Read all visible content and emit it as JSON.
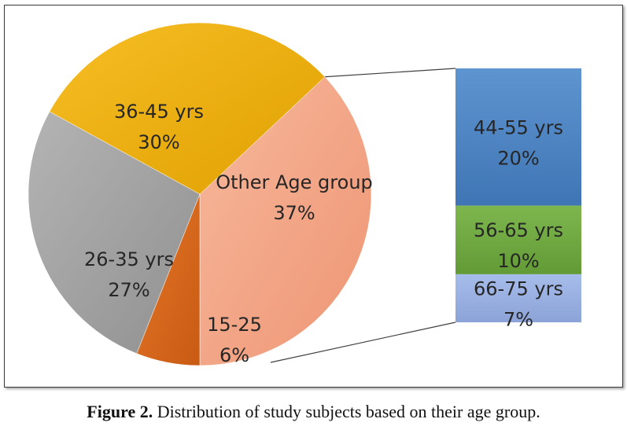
{
  "chart_data": {
    "type": "bar-of-pie",
    "pie": [
      {
        "label": "Other Age group",
        "value": 37,
        "value_label": "37%",
        "color": "#F4A686"
      },
      {
        "label": "15-25",
        "value": 6,
        "value_label": "6%",
        "color": "#D96A1E"
      },
      {
        "label": "26-35 yrs",
        "value": 27,
        "value_label": "27%",
        "color": "#A6A6A6"
      },
      {
        "label": "36-45 yrs",
        "value": 30,
        "value_label": "30%",
        "color": "#F0B000"
      }
    ],
    "bar": [
      {
        "label": "44-55 yrs",
        "value": 20,
        "value_label": "20%",
        "color": "#4F88C6"
      },
      {
        "label": "56-65 yrs",
        "value": 10,
        "value_label": "10%",
        "color": "#73AA44"
      },
      {
        "label": "66-75 yrs",
        "value": 7,
        "value_label": "7%",
        "color": "#98AEE0"
      }
    ],
    "exploded_slice": "Other Age group"
  },
  "caption": {
    "prefix": "Figure 2.",
    "text": " Distribution of study subjects based on their age group."
  }
}
